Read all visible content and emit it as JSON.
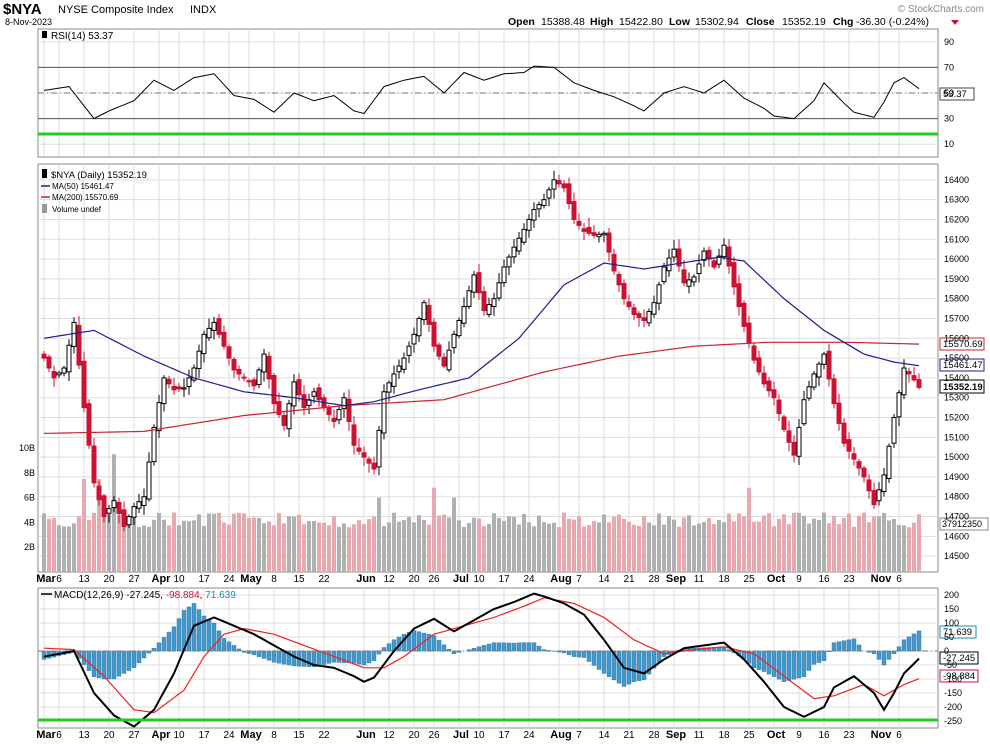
{
  "header": {
    "symbol": "$NYA",
    "name": "NYSE Composite Index",
    "exchange": "INDX",
    "date": "8-Nov-2023",
    "open_label": "Open",
    "open": "15388.48",
    "high_label": "High",
    "high": "15422.80",
    "low_label": "Low",
    "low": "15302.94",
    "close_label": "Close",
    "close": "15352.19",
    "chg_label": "Chg",
    "chg": "-36.30 (-0.24%)",
    "watermark": "© StockCharts.com"
  },
  "colors": {
    "up": "#000000",
    "down": "#cc1133",
    "ma50": "#1a1f8c",
    "ma200": "#cc2233",
    "vol_up": "#b0b0b0",
    "vol_down": "#e8a8b0",
    "green_line": "#22cc22",
    "macd_hist": "#4499cc",
    "signal": "#ee2222",
    "grid": "#dddddd"
  },
  "rsi_panel": {
    "label": "RSI(14) 53.37",
    "value_tag": "53.37",
    "ticks": [
      "90",
      "70",
      "50",
      "30",
      "10"
    ]
  },
  "price_panel": {
    "legend": [
      {
        "text": "$NYA (Daily) 15352.19"
      },
      {
        "text": "MA(50) 15461.47"
      },
      {
        "text": "MA(200) 15570.69"
      },
      {
        "text": "Volume undef"
      }
    ],
    "tags": {
      "ma200": "15570.69",
      "ma50": "15461.47",
      "close": "15352.19",
      "volume": "37912350"
    },
    "price_ticks": [
      "16400",
      "16300",
      "16200",
      "16100",
      "16000",
      "15900",
      "15800",
      "15700",
      "15600",
      "15500",
      "15400",
      "15300",
      "15200",
      "15100",
      "15000",
      "14900",
      "14800",
      "14700",
      "14600",
      "14500"
    ],
    "volume_ticks": [
      "10B",
      "8B",
      "6B",
      "4B",
      "2B"
    ]
  },
  "macd_panel": {
    "label_prefix": "MACD(12,26,9)",
    "macd": "-27.245",
    "signal": "-98.884",
    "hist": "71.639",
    "tags": {
      "hist": "71.639",
      "macd": "-27.245",
      "signal": "-98.884"
    },
    "ticks": [
      "200",
      "150",
      "100",
      "50",
      "0",
      "-50",
      "-100",
      "-150",
      "-200",
      "-250"
    ]
  },
  "x_axis": {
    "labels": [
      {
        "text": "Mar",
        "bold": true,
        "i": 0
      },
      {
        "text": "6",
        "i": 3
      },
      {
        "text": "13",
        "i": 8
      },
      {
        "text": "20",
        "i": 13
      },
      {
        "text": "27",
        "i": 18
      },
      {
        "text": "Apr",
        "bold": true,
        "i": 23
      },
      {
        "text": "10",
        "i": 27
      },
      {
        "text": "17",
        "i": 32
      },
      {
        "text": "24",
        "i": 37
      },
      {
        "text": "May",
        "bold": true,
        "i": 41
      },
      {
        "text": "8",
        "i": 46
      },
      {
        "text": "15",
        "i": 51
      },
      {
        "text": "22",
        "i": 56
      },
      {
        "text": "Jun",
        "bold": true,
        "i": 64
      },
      {
        "text": "12",
        "i": 69
      },
      {
        "text": "20",
        "i": 74
      },
      {
        "text": "26",
        "i": 78
      },
      {
        "text": "Jul",
        "bold": true,
        "i": 83
      },
      {
        "text": "10",
        "i": 87
      },
      {
        "text": "17",
        "i": 92
      },
      {
        "text": "24",
        "i": 97
      },
      {
        "text": "Aug",
        "bold": true,
        "i": 103
      },
      {
        "text": "7",
        "i": 107
      },
      {
        "text": "14",
        "i": 112
      },
      {
        "text": "21",
        "i": 117
      },
      {
        "text": "28",
        "i": 122
      },
      {
        "text": "Sep",
        "bold": true,
        "i": 126
      },
      {
        "text": "11",
        "i": 131
      },
      {
        "text": "18",
        "i": 136
      },
      {
        "text": "25",
        "i": 141
      },
      {
        "text": "Oct",
        "bold": true,
        "i": 146
      },
      {
        "text": "9",
        "i": 151
      },
      {
        "text": "16",
        "i": 156
      },
      {
        "text": "23",
        "i": 161
      },
      {
        "text": "Nov",
        "bold": true,
        "i": 167
      },
      {
        "text": "6",
        "i": 171
      }
    ]
  },
  "chart_data": {
    "type": "candlestick",
    "title": "$NYA NYSE Composite Index INDX",
    "period": "Daily",
    "x_range": [
      "Mar 2023",
      "8-Nov-2023"
    ],
    "price_ylim": [
      14420,
      16480
    ],
    "price_keyframes": [
      [
        0,
        15500
      ],
      [
        2,
        15400
      ],
      [
        4,
        15450
      ],
      [
        6,
        15680
      ],
      [
        8,
        15250
      ],
      [
        10,
        14870
      ],
      [
        12,
        14700
      ],
      [
        14,
        14780
      ],
      [
        16,
        14650
      ],
      [
        18,
        14750
      ],
      [
        20,
        14800
      ],
      [
        22,
        15150
      ],
      [
        24,
        15400
      ],
      [
        26,
        15340
      ],
      [
        28,
        15350
      ],
      [
        30,
        15450
      ],
      [
        32,
        15620
      ],
      [
        34,
        15680
      ],
      [
        36,
        15560
      ],
      [
        38,
        15440
      ],
      [
        40,
        15400
      ],
      [
        42,
        15360
      ],
      [
        44,
        15520
      ],
      [
        46,
        15270
      ],
      [
        48,
        15160
      ],
      [
        50,
        15380
      ],
      [
        52,
        15250
      ],
      [
        54,
        15330
      ],
      [
        56,
        15250
      ],
      [
        58,
        15180
      ],
      [
        60,
        15300
      ],
      [
        62,
        15060
      ],
      [
        64,
        15000
      ],
      [
        66,
        14940
      ],
      [
        68,
        15330
      ],
      [
        70,
        15420
      ],
      [
        72,
        15500
      ],
      [
        74,
        15620
      ],
      [
        76,
        15780
      ],
      [
        78,
        15560
      ],
      [
        80,
        15460
      ],
      [
        82,
        15620
      ],
      [
        84,
        15760
      ],
      [
        86,
        15920
      ],
      [
        88,
        15740
      ],
      [
        90,
        15800
      ],
      [
        92,
        15960
      ],
      [
        94,
        16060
      ],
      [
        96,
        16150
      ],
      [
        98,
        16250
      ],
      [
        100,
        16300
      ],
      [
        102,
        16400
      ],
      [
        104,
        16360
      ],
      [
        106,
        16200
      ],
      [
        108,
        16140
      ],
      [
        110,
        16120
      ],
      [
        112,
        16130
      ],
      [
        114,
        15940
      ],
      [
        116,
        15800
      ],
      [
        118,
        15720
      ],
      [
        120,
        15690
      ],
      [
        122,
        15780
      ],
      [
        124,
        15960
      ],
      [
        126,
        16050
      ],
      [
        128,
        15880
      ],
      [
        130,
        15910
      ],
      [
        132,
        16040
      ],
      [
        134,
        15960
      ],
      [
        136,
        16070
      ],
      [
        138,
        15860
      ],
      [
        140,
        15660
      ],
      [
        142,
        15490
      ],
      [
        144,
        15370
      ],
      [
        146,
        15300
      ],
      [
        148,
        15140
      ],
      [
        150,
        15010
      ],
      [
        152,
        15290
      ],
      [
        154,
        15420
      ],
      [
        156,
        15520
      ],
      [
        158,
        15270
      ],
      [
        160,
        15070
      ],
      [
        162,
        14990
      ],
      [
        164,
        14900
      ],
      [
        166,
        14760
      ],
      [
        168,
        14910
      ],
      [
        170,
        15200
      ],
      [
        172,
        15450
      ],
      [
        174,
        15390
      ],
      [
        175,
        15352.19
      ]
    ],
    "ma50_keyframes": [
      [
        0,
        15600
      ],
      [
        10,
        15640
      ],
      [
        20,
        15510
      ],
      [
        30,
        15400
      ],
      [
        40,
        15330
      ],
      [
        50,
        15300
      ],
      [
        60,
        15260
      ],
      [
        66,
        15280
      ],
      [
        75,
        15340
      ],
      [
        85,
        15400
      ],
      [
        95,
        15600
      ],
      [
        104,
        15870
      ],
      [
        112,
        15980
      ],
      [
        120,
        15950
      ],
      [
        130,
        15990
      ],
      [
        135,
        16010
      ],
      [
        140,
        15990
      ],
      [
        148,
        15800
      ],
      [
        156,
        15640
      ],
      [
        164,
        15520
      ],
      [
        170,
        15480
      ],
      [
        175,
        15461.47
      ]
    ],
    "ma200_keyframes": [
      [
        0,
        15120
      ],
      [
        20,
        15130
      ],
      [
        40,
        15210
      ],
      [
        60,
        15260
      ],
      [
        80,
        15290
      ],
      [
        100,
        15430
      ],
      [
        115,
        15510
      ],
      [
        130,
        15560
      ],
      [
        145,
        15580
      ],
      [
        160,
        15580
      ],
      [
        175,
        15570.69
      ]
    ],
    "rsi": {
      "current": 53.37,
      "range": [
        0,
        100
      ],
      "keyframes": [
        [
          0,
          52
        ],
        [
          5,
          55
        ],
        [
          10,
          30
        ],
        [
          13,
          36
        ],
        [
          18,
          44
        ],
        [
          22,
          60
        ],
        [
          26,
          52
        ],
        [
          30,
          62
        ],
        [
          34,
          65
        ],
        [
          38,
          48
        ],
        [
          42,
          45
        ],
        [
          46,
          35
        ],
        [
          50,
          50
        ],
        [
          54,
          44
        ],
        [
          58,
          48
        ],
        [
          62,
          36
        ],
        [
          64,
          34
        ],
        [
          68,
          55
        ],
        [
          72,
          60
        ],
        [
          76,
          63
        ],
        [
          80,
          50
        ],
        [
          84,
          66
        ],
        [
          88,
          60
        ],
        [
          92,
          65
        ],
        [
          96,
          66
        ],
        [
          98,
          71
        ],
        [
          102,
          70
        ],
        [
          106,
          58
        ],
        [
          110,
          52
        ],
        [
          114,
          47
        ],
        [
          118,
          40
        ],
        [
          120,
          36
        ],
        [
          124,
          50
        ],
        [
          128,
          55
        ],
        [
          132,
          50
        ],
        [
          136,
          60
        ],
        [
          140,
          46
        ],
        [
          144,
          38
        ],
        [
          146,
          32
        ],
        [
          150,
          30
        ],
        [
          154,
          44
        ],
        [
          156,
          58
        ],
        [
          160,
          42
        ],
        [
          162,
          35
        ],
        [
          166,
          31
        ],
        [
          168,
          43
        ],
        [
          170,
          58
        ],
        [
          172,
          62
        ],
        [
          175,
          53.37
        ]
      ]
    },
    "macd": {
      "current": -27.245,
      "signal": -98.884,
      "histogram": 71.639,
      "ylim": [
        -275,
        225
      ],
      "macd_keyframes": [
        [
          0,
          -20
        ],
        [
          6,
          0
        ],
        [
          10,
          -150
        ],
        [
          14,
          -230
        ],
        [
          18,
          -270
        ],
        [
          22,
          -210
        ],
        [
          26,
          -80
        ],
        [
          30,
          90
        ],
        [
          34,
          120
        ],
        [
          38,
          90
        ],
        [
          42,
          60
        ],
        [
          46,
          20
        ],
        [
          50,
          -20
        ],
        [
          54,
          -50
        ],
        [
          58,
          -60
        ],
        [
          62,
          -90
        ],
        [
          64,
          -110
        ],
        [
          66,
          -95
        ],
        [
          70,
          0
        ],
        [
          74,
          80
        ],
        [
          78,
          115
        ],
        [
          82,
          70
        ],
        [
          86,
          110
        ],
        [
          90,
          150
        ],
        [
          94,
          175
        ],
        [
          98,
          205
        ],
        [
          100,
          195
        ],
        [
          104,
          170
        ],
        [
          108,
          130
        ],
        [
          112,
          40
        ],
        [
          116,
          -60
        ],
        [
          120,
          -80
        ],
        [
          124,
          -30
        ],
        [
          128,
          10
        ],
        [
          132,
          20
        ],
        [
          136,
          30
        ],
        [
          140,
          -30
        ],
        [
          144,
          -110
        ],
        [
          148,
          -200
        ],
        [
          152,
          -235
        ],
        [
          156,
          -200
        ],
        [
          158,
          -130
        ],
        [
          162,
          -90
        ],
        [
          166,
          -150
        ],
        [
          168,
          -210
        ],
        [
          170,
          -150
        ],
        [
          172,
          -80
        ],
        [
          175,
          -27.245
        ]
      ],
      "signal_keyframes": [
        [
          0,
          10
        ],
        [
          6,
          5
        ],
        [
          12,
          -90
        ],
        [
          18,
          -210
        ],
        [
          22,
          -220
        ],
        [
          28,
          -140
        ],
        [
          32,
          -20
        ],
        [
          36,
          60
        ],
        [
          40,
          80
        ],
        [
          46,
          60
        ],
        [
          52,
          20
        ],
        [
          58,
          -20
        ],
        [
          64,
          -60
        ],
        [
          68,
          -60
        ],
        [
          72,
          -20
        ],
        [
          78,
          60
        ],
        [
          84,
          90
        ],
        [
          90,
          120
        ],
        [
          96,
          160
        ],
        [
          100,
          190
        ],
        [
          106,
          170
        ],
        [
          112,
          120
        ],
        [
          118,
          40
        ],
        [
          124,
          -10
        ],
        [
          130,
          5
        ],
        [
          136,
          15
        ],
        [
          142,
          -10
        ],
        [
          148,
          -90
        ],
        [
          154,
          -170
        ],
        [
          158,
          -160
        ],
        [
          164,
          -120
        ],
        [
          168,
          -160
        ],
        [
          172,
          -120
        ],
        [
          175,
          -98.884
        ]
      ]
    },
    "volume": {
      "unit": "B",
      "latest": 37912350
    }
  }
}
